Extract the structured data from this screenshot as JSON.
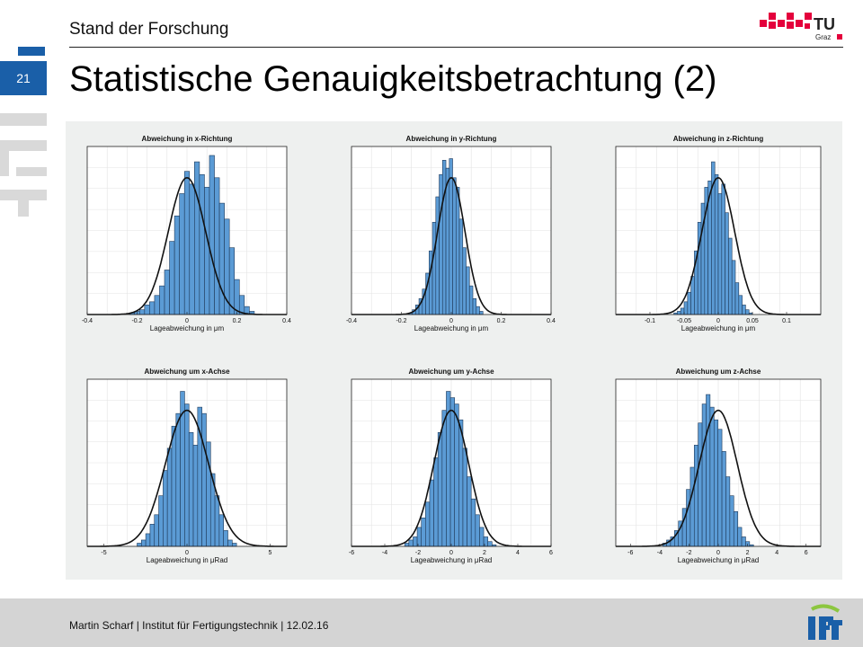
{
  "header": {
    "section": "Stand der Forschung"
  },
  "logo": {
    "text": "TU",
    "sub": "Graz"
  },
  "page": {
    "number": "21"
  },
  "title": "Statistische Genauigkeitsbetrachtung (2)",
  "footer": {
    "text": "Martin Scharf | Institut für Fertigungstechnik | 12.02.16"
  },
  "colors": {
    "accent": "#1a5fa8",
    "brand_red": "#e4003c",
    "bar_fill": "#5b9bd5",
    "bar_edge": "#1f3a5a",
    "fit_line": "#111111",
    "red_line": "#d62728"
  },
  "chart_data": [
    {
      "type": "bar",
      "title": "Abweichung in x-Richtung",
      "xlabel": "Lageabweichung in μm",
      "xlim": [
        -0.4,
        0.4
      ],
      "xticks": [
        "-0.4",
        "-0.2",
        "0",
        "0.2",
        "0.4"
      ],
      "xtick_values": [
        -0.4,
        -0.2,
        0,
        0.2,
        0.4
      ],
      "bin_start": -0.23,
      "bin_width": 0.02,
      "counts": [
        1,
        2,
        3,
        6,
        8,
        12,
        18,
        28,
        46,
        62,
        76,
        90,
        82,
        96,
        88,
        80,
        100,
        86,
        70,
        60,
        42,
        22,
        12,
        5,
        2
      ],
      "fit": {
        "mu": 0.0,
        "sigma": 0.075,
        "peak": 86
      }
    },
    {
      "type": "bar",
      "title": "Abweichung in y-Richtung",
      "xlabel": "Lageabweichung in μm",
      "xlim": [
        -0.4,
        0.4
      ],
      "xticks": [
        "-0.4",
        "-0.2",
        "0",
        "0.2",
        "0.4"
      ],
      "xtick_values": [
        -0.4,
        -0.2,
        0,
        0.2,
        0.4
      ],
      "bin_start": -0.17,
      "bin_width": 0.0135,
      "counts": [
        1,
        3,
        6,
        10,
        16,
        26,
        40,
        58,
        74,
        88,
        97,
        92,
        98,
        86,
        80,
        60,
        42,
        30,
        18,
        10,
        5,
        2
      ],
      "fit": {
        "mu": 0.0,
        "sigma": 0.055,
        "peak": 86
      }
    },
    {
      "type": "bar",
      "title": "Abweichung in z-Richtung",
      "xlabel": "Lageabweichung in μm",
      "xlim": [
        -0.15,
        0.15
      ],
      "xticks": [
        "-0.1",
        "-0.05",
        "0",
        "0.05",
        "0.1"
      ],
      "xtick_values": [
        -0.1,
        -0.05,
        0,
        0.05,
        0.1
      ],
      "bin_start": -0.065,
      "bin_width": 0.005,
      "counts": [
        1,
        2,
        4,
        8,
        14,
        24,
        40,
        58,
        70,
        80,
        84,
        96,
        88,
        76,
        82,
        64,
        48,
        34,
        20,
        12,
        6,
        3,
        1
      ],
      "fit": {
        "mu": 0.0,
        "sigma": 0.024,
        "peak": 86
      }
    },
    {
      "type": "bar",
      "title": "Abweichung um x-Achse",
      "xlabel": "Lageabweichung in μRad",
      "xlim": [
        -6,
        6
      ],
      "xticks": [
        "-5",
        "0",
        "5"
      ],
      "xtick_values": [
        -5,
        0,
        5
      ],
      "bin_start": -3.0,
      "bin_width": 0.26,
      "counts": [
        2,
        4,
        8,
        14,
        20,
        32,
        48,
        62,
        76,
        84,
        98,
        90,
        72,
        64,
        88,
        84,
        66,
        46,
        32,
        20,
        10,
        4,
        2
      ],
      "fit": {
        "mu": 0.0,
        "sigma": 1.3,
        "peak": 86
      }
    },
    {
      "type": "bar",
      "title": "Abweichung um y-Achse",
      "xlabel": "Lageabweichung in μRad",
      "xlim": [
        -6,
        6
      ],
      "xticks": [
        "-6",
        "-4",
        "-2",
        "0",
        "2",
        "4",
        "6"
      ],
      "xtick_values": [
        -6,
        -4,
        -2,
        0,
        2,
        4,
        6
      ],
      "bin_start": -2.8,
      "bin_width": 0.25,
      "counts": [
        2,
        4,
        6,
        12,
        18,
        28,
        42,
        56,
        72,
        86,
        98,
        94,
        90,
        80,
        62,
        44,
        30,
        20,
        12,
        6,
        3,
        1
      ],
      "fit": {
        "mu": 0.0,
        "sigma": 1.05,
        "peak": 86
      }
    },
    {
      "type": "bar",
      "title": "Abweichung um z-Achse",
      "xlabel": "Lageabweichung in μRad",
      "xlim": [
        -7,
        7
      ],
      "xticks": [
        "-6",
        "-4",
        "-2",
        "0",
        "2",
        "4",
        "6"
      ],
      "xtick_values": [
        -6,
        -4,
        -2,
        0,
        2,
        4,
        6
      ],
      "bin_start": -3.8,
      "bin_width": 0.27,
      "counts": [
        2,
        4,
        6,
        10,
        16,
        24,
        36,
        50,
        64,
        78,
        90,
        96,
        88,
        80,
        74,
        60,
        44,
        32,
        22,
        12,
        6,
        3,
        1
      ],
      "fit": {
        "mu": 0.0,
        "sigma": 1.3,
        "peak": 86
      }
    }
  ]
}
